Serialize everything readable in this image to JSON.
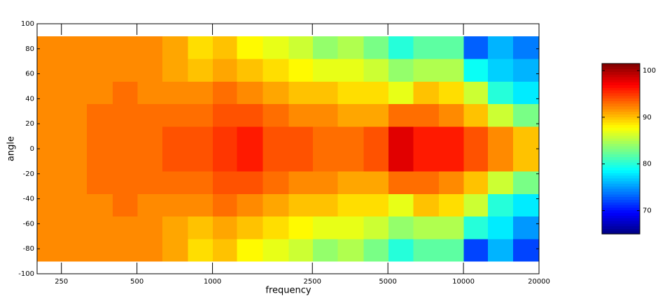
{
  "chart_data": {
    "type": "heatmap",
    "xlabel": "frequency",
    "ylabel": "angle",
    "xscale": "log",
    "xlim": [
      200,
      20000
    ],
    "ylim": [
      -100,
      100
    ],
    "xticks": [
      250,
      500,
      1000,
      2500,
      5000,
      10000,
      20000
    ],
    "yticks": [
      -100,
      -80,
      -60,
      -40,
      -20,
      0,
      20,
      40,
      60,
      80,
      100
    ],
    "x": [
      224,
      280,
      355,
      450,
      560,
      710,
      900,
      1120,
      1400,
      1800,
      2250,
      2800,
      3550,
      4500,
      5600,
      7100,
      9000,
      11200,
      14000,
      17800
    ],
    "y": [
      -81,
      -63,
      -45,
      -27,
      -9,
      9,
      27,
      45,
      63,
      81
    ],
    "values": [
      [
        92,
        92,
        92,
        92,
        92,
        91,
        89,
        90,
        88,
        87,
        86,
        84,
        85,
        83,
        80,
        82,
        82,
        72,
        76,
        72
      ],
      [
        92,
        92,
        92,
        92,
        92,
        91,
        90,
        91,
        90,
        89,
        88,
        87,
        87,
        86,
        84,
        85,
        85,
        80,
        78,
        75
      ],
      [
        92,
        92,
        92,
        93,
        92,
        92,
        92,
        93,
        92,
        91,
        90,
        90,
        89,
        89,
        87,
        90,
        89,
        86,
        80,
        78
      ],
      [
        92,
        92,
        93,
        93,
        93,
        93,
        93,
        94,
        94,
        93,
        92,
        92,
        91,
        91,
        93,
        93,
        92,
        90,
        86,
        83
      ],
      [
        92,
        92,
        93,
        93,
        93,
        94,
        94,
        95,
        96,
        94,
        94,
        93,
        93,
        94,
        98,
        96,
        96,
        94,
        92,
        90
      ],
      [
        92,
        92,
        93,
        93,
        93,
        94,
        94,
        95,
        96,
        94,
        94,
        93,
        93,
        94,
        98,
        96,
        96,
        94,
        92,
        90
      ],
      [
        92,
        92,
        93,
        93,
        93,
        93,
        93,
        94,
        94,
        93,
        92,
        92,
        91,
        91,
        93,
        93,
        92,
        90,
        86,
        83
      ],
      [
        92,
        92,
        92,
        93,
        92,
        92,
        92,
        93,
        92,
        91,
        90,
        90,
        89,
        89,
        87,
        90,
        89,
        86,
        80,
        78
      ],
      [
        92,
        92,
        92,
        92,
        92,
        91,
        90,
        91,
        90,
        89,
        88,
        87,
        87,
        86,
        84,
        85,
        85,
        79,
        77,
        76
      ],
      [
        92,
        92,
        92,
        92,
        92,
        91,
        89,
        90,
        88,
        87,
        86,
        84,
        85,
        83,
        80,
        82,
        82,
        73,
        76,
        74
      ]
    ],
    "colormap": "jet",
    "clim": [
      65,
      101.5
    ],
    "cticks": [
      70,
      80,
      90,
      100
    ]
  }
}
